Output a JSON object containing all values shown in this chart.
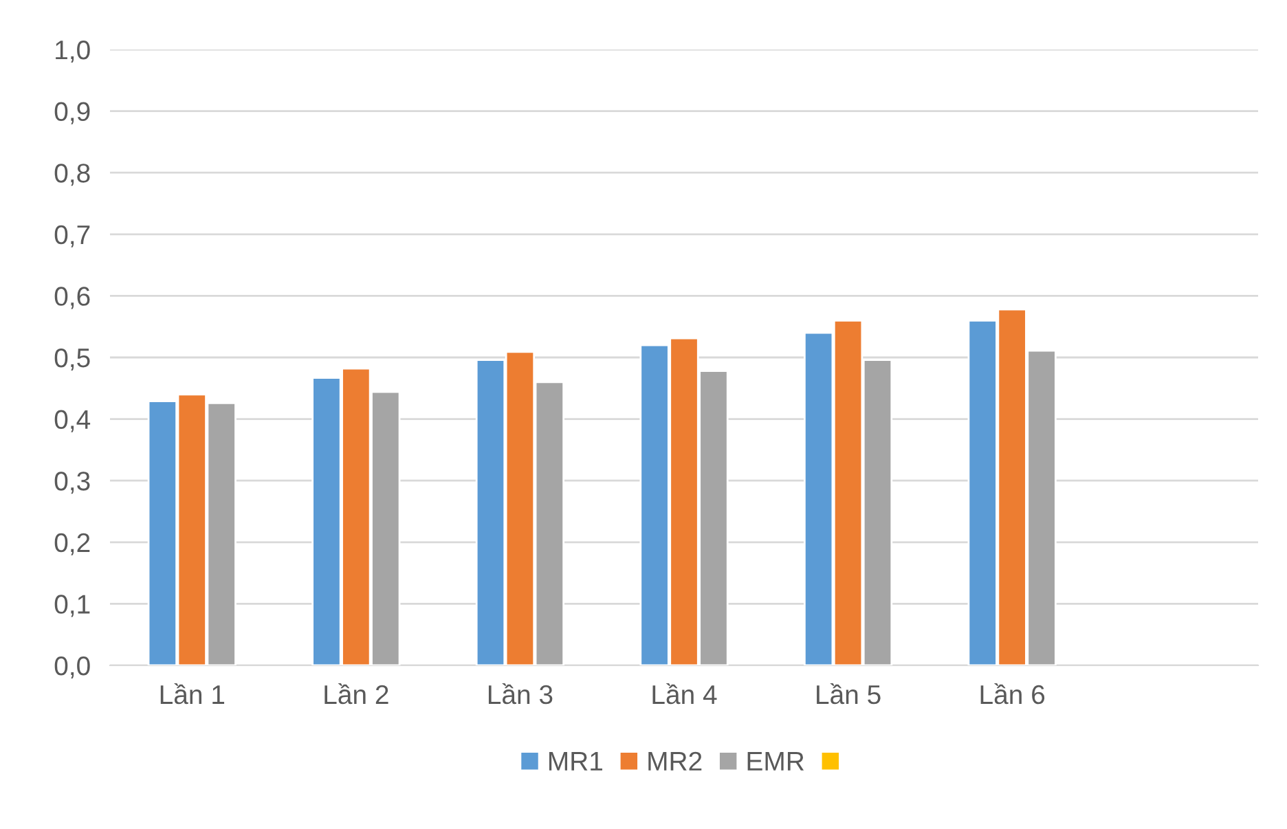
{
  "chart_data": {
    "type": "bar",
    "categories": [
      "Lần 1",
      "Lần 2",
      "Lần 3",
      "Lần 4",
      "Lần 5",
      "Lần 6",
      null
    ],
    "series": [
      {
        "name": "MR1",
        "color": "#5b9bd5",
        "values": [
          0.429,
          0.467,
          0.496,
          0.52,
          0.54,
          0.56,
          null
        ]
      },
      {
        "name": "MR2",
        "color": "#ed7d31",
        "values": [
          0.44,
          0.482,
          0.509,
          0.531,
          0.56,
          0.578,
          null
        ]
      },
      {
        "name": "EMR",
        "color": "#a5a5a5",
        "values": [
          0.426,
          0.444,
          0.46,
          0.478,
          0.496,
          0.511,
          null
        ]
      },
      {
        "color": "#ffc000",
        "values": [
          null,
          null,
          null,
          null,
          null,
          null,
          null
        ]
      }
    ],
    "ylim": [
      0,
      1.0
    ],
    "yticks": [
      {
        "value": 0,
        "label": "0,0"
      },
      {
        "value": 0.1,
        "label": "0,1"
      },
      {
        "value": 0.2,
        "label": "0,2"
      },
      {
        "value": 0.3,
        "label": "0,3"
      },
      {
        "value": 0.4,
        "label": "0,4"
      },
      {
        "value": 0.5,
        "label": "0,5"
      },
      {
        "value": 0.6,
        "label": "0,6"
      },
      {
        "value": 0.7,
        "label": "0,7"
      },
      {
        "value": 0.8,
        "label": "0,8"
      },
      {
        "value": 0.9,
        "label": "0,9"
      },
      {
        "value": 1.0,
        "label": "1,0"
      }
    ],
    "grid": "y",
    "legend": "bottom"
  }
}
